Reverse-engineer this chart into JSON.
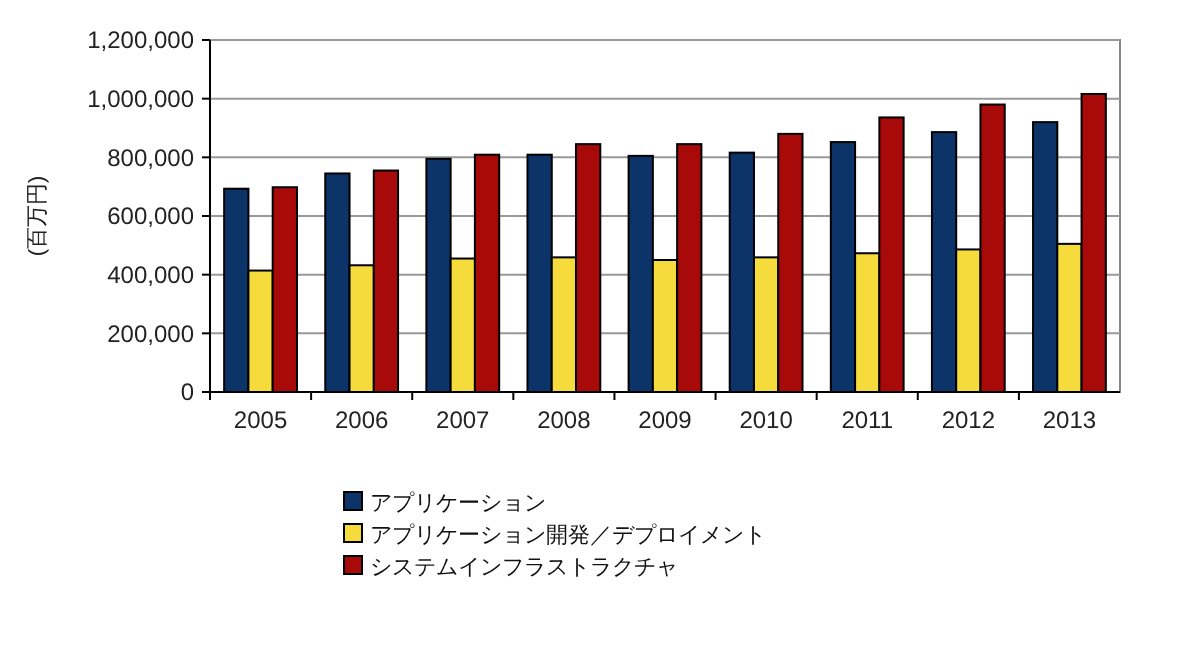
{
  "chart_data": {
    "type": "bar",
    "ylabel": "(百万円)",
    "categories": [
      "2005",
      "2006",
      "2007",
      "2008",
      "2009",
      "2010",
      "2011",
      "2012",
      "2013"
    ],
    "series": [
      {
        "name": "アプリケーション",
        "color": "#0d3468",
        "values": [
          693000,
          745000,
          795000,
          809000,
          805000,
          816000,
          852000,
          886000,
          920000
        ]
      },
      {
        "name": "アプリケーション開発／デプロイメント",
        "color": "#f5dc3c",
        "values": [
          414000,
          432000,
          455000,
          459000,
          450000,
          459000,
          473000,
          486000,
          505000
        ]
      },
      {
        "name": "システムインフラストラクチャ",
        "color": "#a80a0a",
        "values": [
          698000,
          755000,
          809000,
          845000,
          845000,
          880000,
          936000,
          980000,
          1016000
        ]
      }
    ],
    "ylim": [
      0,
      1200000
    ],
    "yticks": [
      {
        "value": 0,
        "label": "0"
      },
      {
        "value": 200000,
        "label": "200,000"
      },
      {
        "value": 400000,
        "label": "400,000"
      },
      {
        "value": 600000,
        "label": "600,000"
      },
      {
        "value": 800000,
        "label": "800,000"
      },
      {
        "value": 1000000,
        "label": "1,000,000"
      },
      {
        "value": 1200000,
        "label": "1,200,000"
      }
    ],
    "grid": "y",
    "legend": "bottom"
  }
}
